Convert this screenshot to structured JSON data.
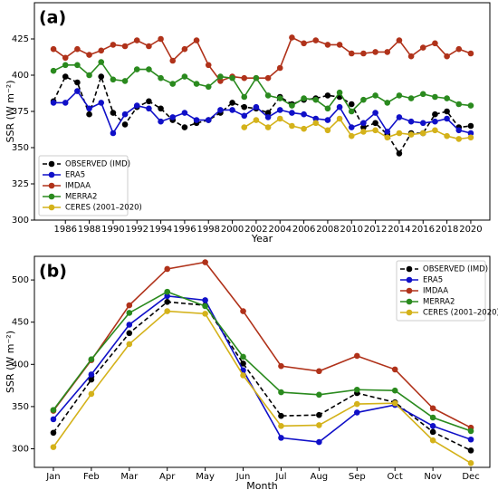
{
  "chart_data": [
    {
      "type": "line",
      "label": "(a)",
      "xlabel": "Year",
      "ylabel": "SSR (W m⁻²)",
      "x": [
        1985,
        1986,
        1987,
        1988,
        1989,
        1990,
        1991,
        1992,
        1993,
        1994,
        1995,
        1996,
        1997,
        1998,
        1999,
        2000,
        2001,
        2002,
        2003,
        2004,
        2005,
        2006,
        2007,
        2008,
        2009,
        2010,
        2011,
        2012,
        2013,
        2014,
        2015,
        2016,
        2017,
        2018,
        2019,
        2020
      ],
      "xlim": [
        1983.4,
        2021.6
      ],
      "xticks": [
        1986,
        1988,
        1990,
        1992,
        1994,
        1996,
        1998,
        2000,
        2002,
        2004,
        2006,
        2008,
        2010,
        2012,
        2014,
        2016,
        2018,
        2020
      ],
      "ylim": [
        300,
        450
      ],
      "yticks": [
        300,
        325,
        350,
        375,
        400,
        425
      ],
      "legend": "lower left",
      "series": [
        {
          "name": "OBSERVED (IMD)",
          "color": "#000000",
          "linestyle": "dashed",
          "values": [
            382,
            399,
            395,
            373,
            399,
            374,
            366,
            378,
            382,
            377,
            369,
            364,
            367,
            369,
            374,
            381,
            378,
            377,
            374,
            385,
            380,
            383,
            384,
            386,
            385,
            380,
            364,
            367,
            359,
            346,
            360,
            360,
            373,
            375,
            364,
            365
          ]
        },
        {
          "name": "ERA5",
          "color": "#1010c8",
          "linestyle": "solid",
          "values": [
            381,
            381,
            389,
            377,
            381,
            360,
            373,
            379,
            377,
            368,
            371,
            374,
            369,
            369,
            376,
            376,
            372,
            378,
            371,
            376,
            374,
            373,
            370,
            369,
            378,
            364,
            367,
            374,
            361,
            371,
            368,
            367,
            368,
            370,
            362,
            360
          ]
        },
        {
          "name": "IMDAA",
          "color": "#b0321a",
          "linestyle": "solid",
          "values": [
            418,
            412,
            418,
            414,
            417,
            421,
            420,
            424,
            420,
            425,
            410,
            418,
            424,
            407,
            396,
            399,
            398,
            398,
            398,
            405,
            426,
            422,
            424,
            421,
            421,
            415,
            415,
            416,
            416,
            424,
            413,
            419,
            422,
            413,
            418,
            415
          ]
        },
        {
          "name": "MERRA2",
          "color": "#2a8a1e",
          "linestyle": "solid",
          "values": [
            403,
            407,
            407,
            400,
            409,
            397,
            396,
            404,
            404,
            398,
            394,
            399,
            394,
            392,
            399,
            398,
            385,
            398,
            386,
            384,
            379,
            384,
            383,
            377,
            388,
            375,
            383,
            386,
            381,
            386,
            384,
            387,
            385,
            384,
            380,
            379
          ]
        },
        {
          "name": "CERES (2001–2020)",
          "color": "#d4b21a",
          "linestyle": "solid",
          "values": [
            null,
            null,
            null,
            null,
            null,
            null,
            null,
            null,
            null,
            null,
            null,
            null,
            null,
            null,
            null,
            null,
            364,
            369,
            364,
            370,
            365,
            363,
            367,
            362,
            370,
            358,
            361,
            362,
            357,
            360,
            359,
            360,
            362,
            358,
            356,
            357
          ]
        }
      ]
    },
    {
      "type": "line",
      "label": "(b)",
      "xlabel": "Month",
      "ylabel": "SSR (W m⁻²)",
      "categories": [
        "Jan",
        "Feb",
        "Mar",
        "Apr",
        "May",
        "Jun",
        "Jul",
        "Aug",
        "Sep",
        "Oct",
        "Nov",
        "Dec"
      ],
      "ylim": [
        278,
        528
      ],
      "yticks": [
        300,
        350,
        400,
        450,
        500
      ],
      "legend": "upper right",
      "series": [
        {
          "name": "OBSERVED (IMD)",
          "color": "#000000",
          "linestyle": "dashed",
          "values": [
            319,
            382,
            437,
            474,
            470,
            401,
            339,
            340,
            366,
            355,
            320,
            298
          ]
        },
        {
          "name": "ERA5",
          "color": "#1010c8",
          "linestyle": "solid",
          "values": [
            335,
            388,
            447,
            481,
            476,
            393,
            313,
            308,
            343,
            352,
            327,
            311
          ]
        },
        {
          "name": "IMDAA",
          "color": "#b0321a",
          "linestyle": "solid",
          "values": [
            345,
            405,
            470,
            513,
            521,
            463,
            398,
            392,
            410,
            394,
            348,
            325
          ]
        },
        {
          "name": "MERRA2",
          "color": "#2a8a1e",
          "linestyle": "solid",
          "values": [
            346,
            406,
            461,
            486,
            469,
            409,
            367,
            364,
            370,
            369,
            337,
            321
          ]
        },
        {
          "name": "CERES (2001–2020)",
          "color": "#d4b21a",
          "linestyle": "solid",
          "values": [
            302,
            365,
            424,
            463,
            460,
            387,
            327,
            328,
            353,
            354,
            310,
            283
          ]
        }
      ]
    }
  ]
}
